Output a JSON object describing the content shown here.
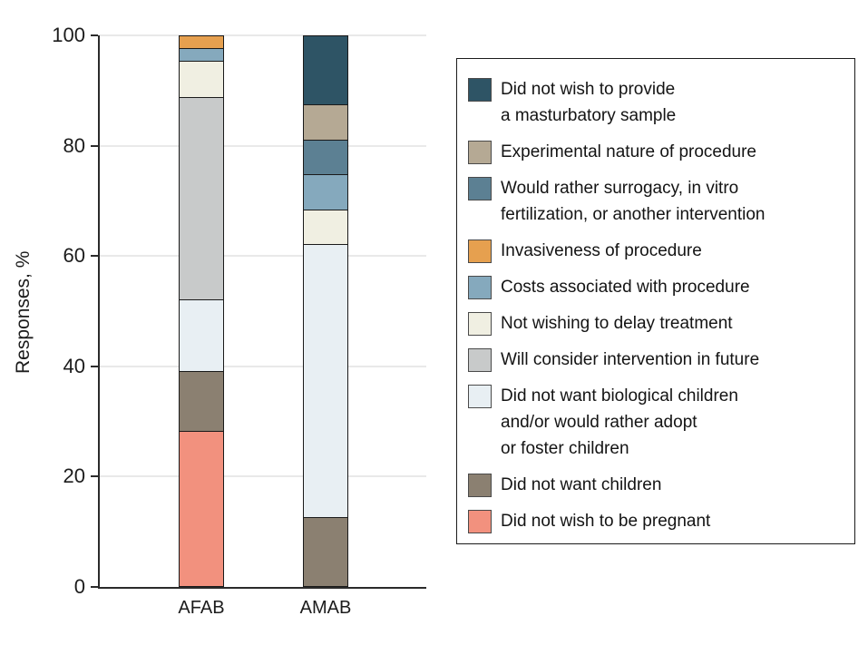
{
  "chart_data": {
    "type": "bar",
    "stacked": true,
    "title": "",
    "xlabel": "",
    "ylabel": "Responses, %",
    "ylim": [
      0,
      100
    ],
    "yticks": [
      0,
      20,
      40,
      60,
      80,
      100
    ],
    "grid": true,
    "legend_position": "right",
    "categories": [
      "AFAB",
      "AMAB"
    ],
    "series": [
      {
        "name": "Did not wish to be pregnant",
        "color": "#f2917e",
        "values": [
          28.26,
          0
        ]
      },
      {
        "name": "Did not want children",
        "color": "#8b8071",
        "values": [
          10.87,
          12.5
        ]
      },
      {
        "name": "Did not want biological children and/or would rather adopt or foster children",
        "color": "#e8eff3",
        "values": [
          13.04,
          50
        ]
      },
      {
        "name": "Will consider intervention in future",
        "color": "#c8caca",
        "values": [
          36.96,
          0
        ]
      },
      {
        "name": "Not wishing to delay treatment",
        "color": "#f0efe2",
        "values": [
          6.52,
          6.25
        ]
      },
      {
        "name": "Costs associated with procedure",
        "color": "#85a9bd",
        "values": [
          2.17,
          6.25
        ]
      },
      {
        "name": "Invasiveness of procedure",
        "color": "#e6a04f",
        "values": [
          2.17,
          0
        ]
      },
      {
        "name": "Would rather surrogacy, in vitro fertilization, or another intervention",
        "color": "#5c8093",
        "values": [
          0,
          6.25
        ]
      },
      {
        "name": "Experimental nature of procedure",
        "color": "#b5a994",
        "values": [
          0,
          6.25
        ]
      },
      {
        "name": "Did not wish to provide a masturbatory sample",
        "color": "#2e5465",
        "values": [
          0,
          12.5
        ]
      }
    ]
  },
  "axis": {
    "y_tick_labels": [
      "0",
      "20",
      "40",
      "60",
      "80",
      "100"
    ],
    "x_tick_labels": [
      "AFAB",
      "AMAB"
    ]
  },
  "legend": {
    "items": [
      {
        "color": "#2e5465",
        "lines": [
          "Did not wish to provide",
          "a masturbatory sample"
        ]
      },
      {
        "color": "#b5a994",
        "lines": [
          "Experimental nature of procedure"
        ]
      },
      {
        "color": "#5c8093",
        "lines": [
          "Would rather surrogacy, in vitro",
          "fertilization, or another intervention"
        ]
      },
      {
        "color": "#e6a04f",
        "lines": [
          "Invasiveness of procedure"
        ]
      },
      {
        "color": "#85a9bd",
        "lines": [
          "Costs associated with procedure"
        ]
      },
      {
        "color": "#f0efe2",
        "lines": [
          "Not wishing to delay treatment"
        ]
      },
      {
        "color": "#c8caca",
        "lines": [
          "Will consider intervention in future"
        ]
      },
      {
        "color": "#e8eff3",
        "lines": [
          "Did not want biological children",
          "and/or would rather adopt",
          "or foster children"
        ]
      },
      {
        "color": "#8b8071",
        "lines": [
          "Did not want children"
        ]
      },
      {
        "color": "#f2917e",
        "lines": [
          "Did not wish to be pregnant"
        ]
      }
    ]
  }
}
